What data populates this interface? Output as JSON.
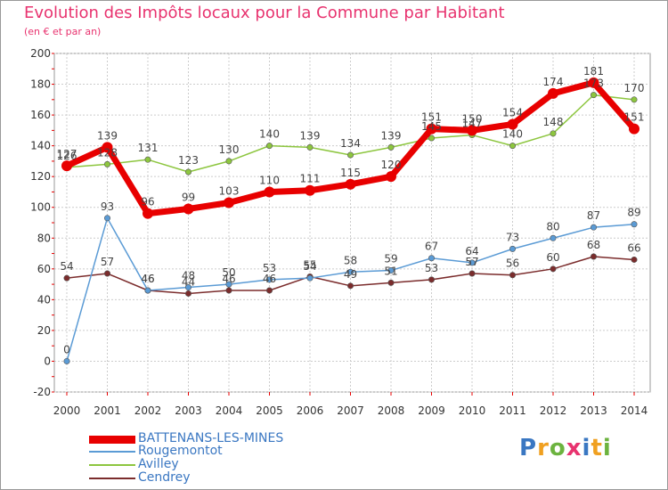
{
  "title": "Evolution des Impôts locaux pour la Commune par Habitant",
  "subtitle": "(en € et par an)",
  "logo": {
    "letters": [
      "P",
      "r",
      "o",
      "x",
      "i",
      "t",
      "i"
    ],
    "colors": [
      "#3a77c2",
      "#f0a020",
      "#6cb33f",
      "#e8336f",
      "#3a77c2",
      "#f0a020",
      "#6cb33f"
    ]
  },
  "chart_data": {
    "type": "line",
    "x": [
      "2000",
      "2001",
      "2002",
      "2003",
      "2004",
      "2005",
      "2006",
      "2007",
      "2008",
      "2009",
      "2010",
      "2011",
      "2012",
      "2013",
      "2014"
    ],
    "ylim": [
      -20,
      200
    ],
    "yticks": [
      "-20",
      "0",
      "20",
      "40",
      "60",
      "80",
      "100",
      "120",
      "140",
      "160",
      "180",
      "200"
    ],
    "grid": true,
    "legend": "bottom-left",
    "series": [
      {
        "name": "BATTENANS-LES-MINES",
        "color": "#e80000",
        "values": [
          127,
          139,
          96,
          99,
          103,
          110,
          111,
          115,
          120,
          151,
          150,
          154,
          174,
          181,
          151
        ],
        "labels": [
          "127",
          "139",
          "96",
          "99",
          "103",
          "110",
          "111",
          "115",
          "120",
          "151",
          "150",
          "154",
          "174",
          "181",
          "151"
        ]
      },
      {
        "name": "Rougemontot",
        "color": "#5b9bd5",
        "values": [
          0,
          93,
          46,
          48,
          50,
          53,
          54,
          58,
          59,
          67,
          64,
          73,
          80,
          87,
          89
        ],
        "labels": [
          "0",
          "93",
          "46",
          "48",
          "50",
          "53",
          "54",
          "58",
          "59",
          "67",
          "64",
          "73",
          "80",
          "87",
          "89"
        ]
      },
      {
        "name": "Avilley",
        "color": "#8dc63f",
        "values": [
          126,
          128,
          131,
          123,
          130,
          140,
          139,
          134,
          139,
          145,
          147,
          140,
          148,
          173,
          170
        ],
        "labels": [
          "126",
          "128",
          "131",
          "123",
          "130",
          "140",
          "139",
          "134",
          "139",
          "145",
          "147",
          "140",
          "148",
          "173",
          "170"
        ]
      },
      {
        "name": "Cendrey",
        "color": "#7b2c2c",
        "values": [
          54,
          57,
          46,
          44,
          46,
          46,
          55,
          49,
          51,
          53,
          57,
          56,
          60,
          68,
          66
        ],
        "labels": [
          "54",
          "57",
          "46",
          "44",
          "46",
          "46",
          "55",
          "49",
          "51",
          "53",
          "57",
          "56",
          "60",
          "68",
          "66"
        ]
      }
    ]
  }
}
